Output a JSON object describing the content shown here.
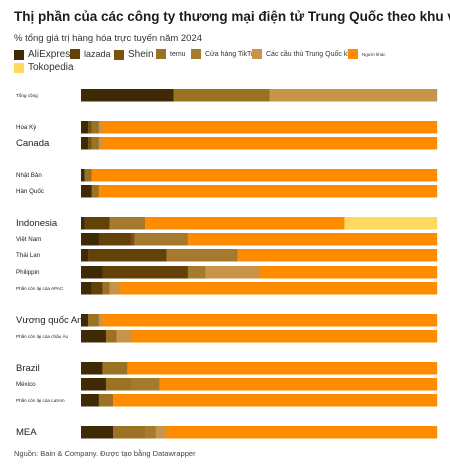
{
  "title": "Thị phần của các công ty thương mại điện tử Trung Quốc theo khu vực",
  "subtitle": "% tổng giá trị hàng hóa trực tuyến năm 2024",
  "source": "Nguồn: Bain & Company. Được tạo bằng Datawrapper",
  "chart_data": {
    "type": "bar",
    "orientation": "horizontal",
    "stacked": true,
    "xlim": [
      0,
      100
    ],
    "legend_placement": "top",
    "series": [
      {
        "name": "AliExpress",
        "color": "#3f2a06"
      },
      {
        "name": "lazada",
        "color": "#634208"
      },
      {
        "name": "Shein",
        "color": "#7a5310"
      },
      {
        "name": "temu",
        "color": "#9b7124"
      },
      {
        "name": "Cửa hàng TikTok",
        "color": "#a57a2e"
      },
      {
        "name": "Các cầu thủ Trung Quốc khác",
        "color": "#c7944a"
      },
      {
        "name": "Người khác",
        "color": "#ff8c00"
      },
      {
        "name": "Tokopedia",
        "color": "#ffd85e"
      }
    ],
    "categories": [
      {
        "label": "Tổng cộng",
        "big": false,
        "segments": [
          {
            "s": 0,
            "v": 26
          },
          {
            "s": 3,
            "v": 27
          },
          {
            "s": 5,
            "v": 47
          }
        ]
      },
      {
        "label": "Hoa Kỳ",
        "big": false,
        "segments": [
          {
            "s": 0,
            "v": 2
          },
          {
            "s": 2,
            "v": 1
          },
          {
            "s": 3,
            "v": 2
          },
          {
            "s": 5,
            "v": 1
          },
          {
            "s": 6,
            "v": 94
          }
        ]
      },
      {
        "label": "Canada",
        "big": true,
        "segments": [
          {
            "s": 0,
            "v": 2
          },
          {
            "s": 2,
            "v": 1
          },
          {
            "s": 3,
            "v": 2
          },
          {
            "s": 5,
            "v": 1
          },
          {
            "s": 6,
            "v": 94
          }
        ]
      },
      {
        "label": "Nhật Bản",
        "big": false,
        "segments": [
          {
            "s": 0,
            "v": 1
          },
          {
            "s": 3,
            "v": 2
          },
          {
            "s": 6,
            "v": 97
          }
        ]
      },
      {
        "label": "Hàn Quốc",
        "big": false,
        "segments": [
          {
            "s": 0,
            "v": 3
          },
          {
            "s": 3,
            "v": 2
          },
          {
            "s": 6,
            "v": 95
          }
        ]
      },
      {
        "label": "Indonesia",
        "big": true,
        "segments": [
          {
            "s": 0,
            "v": 1
          },
          {
            "s": 1,
            "v": 7
          },
          {
            "s": 4,
            "v": 10
          },
          {
            "s": 6,
            "v": 56
          },
          {
            "s": 7,
            "v": 26
          }
        ]
      },
      {
        "label": "Việt Nam",
        "big": false,
        "segments": [
          {
            "s": 0,
            "v": 5
          },
          {
            "s": 1,
            "v": 9
          },
          {
            "s": 2,
            "v": 1
          },
          {
            "s": 4,
            "v": 15
          },
          {
            "s": 6,
            "v": 70
          }
        ]
      },
      {
        "label": "Thái Lan",
        "big": false,
        "segments": [
          {
            "s": 0,
            "v": 2
          },
          {
            "s": 1,
            "v": 22
          },
          {
            "s": 4,
            "v": 20
          },
          {
            "s": 6,
            "v": 56
          }
        ]
      },
      {
        "label": "Philippin",
        "big": false,
        "segments": [
          {
            "s": 0,
            "v": 6
          },
          {
            "s": 1,
            "v": 24
          },
          {
            "s": 4,
            "v": 5
          },
          {
            "s": 5,
            "v": 15
          },
          {
            "s": 6,
            "v": 50
          }
        ]
      },
      {
        "label": "Phần còn lại của APAC",
        "big": false,
        "segments": [
          {
            "s": 0,
            "v": 3
          },
          {
            "s": 1,
            "v": 3
          },
          {
            "s": 3,
            "v": 2
          },
          {
            "s": 5,
            "v": 3
          },
          {
            "s": 6,
            "v": 89
          }
        ]
      },
      {
        "label": "Vương quốc Anh",
        "big": true,
        "segments": [
          {
            "s": 0,
            "v": 2
          },
          {
            "s": 3,
            "v": 3
          },
          {
            "s": 5,
            "v": 1
          },
          {
            "s": 6,
            "v": 94
          }
        ]
      },
      {
        "label": "Phần còn lại của châu Âu",
        "big": false,
        "segments": [
          {
            "s": 0,
            "v": 7
          },
          {
            "s": 3,
            "v": 3
          },
          {
            "s": 5,
            "v": 4
          },
          {
            "s": 6,
            "v": 86
          }
        ]
      },
      {
        "label": "Brazil",
        "big": true,
        "segments": [
          {
            "s": 0,
            "v": 6
          },
          {
            "s": 3,
            "v": 7
          },
          {
            "s": 6,
            "v": 87
          }
        ]
      },
      {
        "label": "México",
        "big": false,
        "segments": [
          {
            "s": 0,
            "v": 7
          },
          {
            "s": 3,
            "v": 7
          },
          {
            "s": 4,
            "v": 8
          },
          {
            "s": 6,
            "v": 78
          }
        ]
      },
      {
        "label": "Phần còn lại của LatAm",
        "big": false,
        "segments": [
          {
            "s": 0,
            "v": 5
          },
          {
            "s": 3,
            "v": 4
          },
          {
            "s": 6,
            "v": 91
          }
        ]
      },
      {
        "label": "MEA",
        "big": true,
        "segments": [
          {
            "s": 0,
            "v": 9
          },
          {
            "s": 3,
            "v": 9
          },
          {
            "s": 4,
            "v": 3
          },
          {
            "s": 5,
            "v": 3
          },
          {
            "s": 6,
            "v": 76
          }
        ]
      }
    ]
  }
}
